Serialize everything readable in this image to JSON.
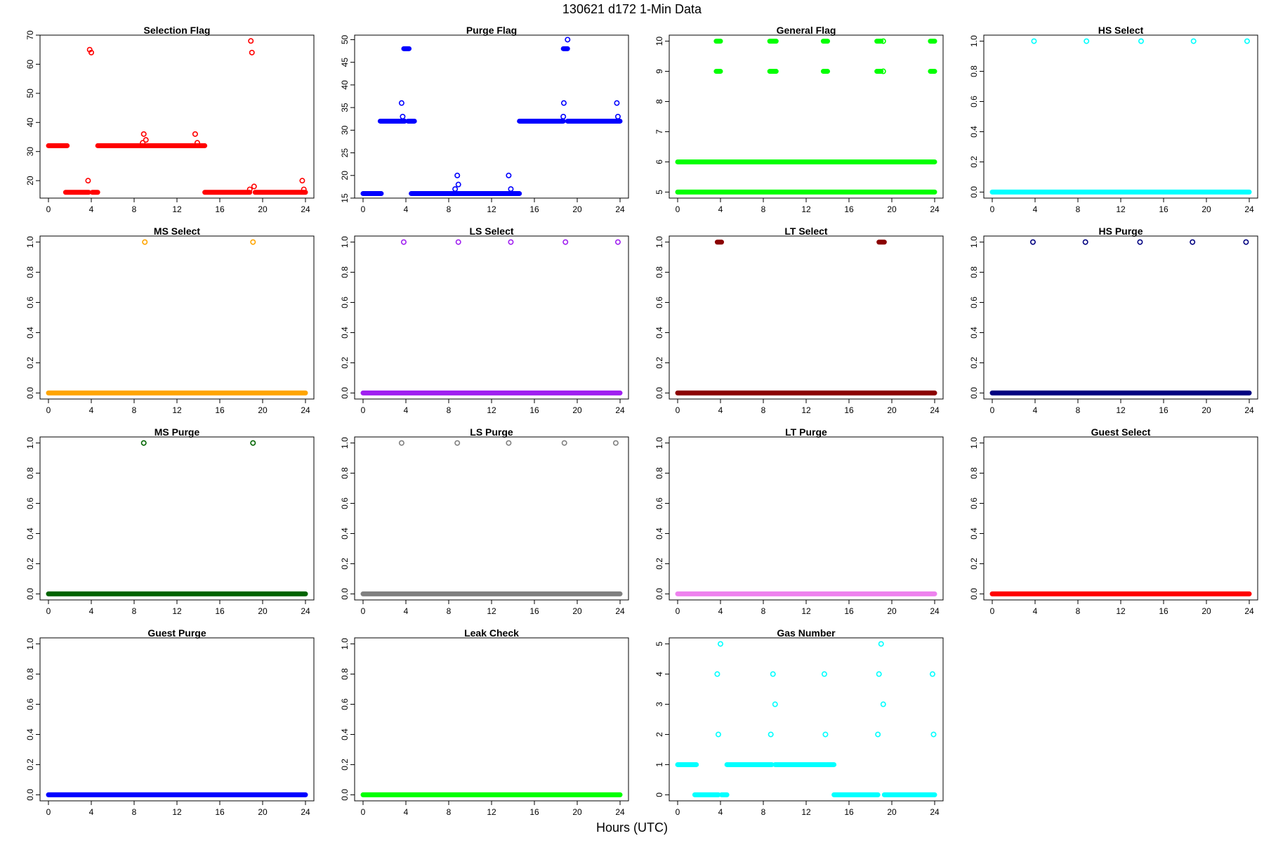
{
  "figure": {
    "title": "130621    d172    1-Min Data",
    "xlabel": "Hours (UTC)"
  },
  "chart_data": [
    {
      "type": "scatter",
      "title": "Selection Flag",
      "color": "#ff0000",
      "xlim": [
        0,
        24
      ],
      "ylim": [
        14,
        70
      ],
      "xticks": [
        0,
        4,
        8,
        12,
        16,
        20,
        24
      ],
      "yticks": [
        20,
        30,
        40,
        50,
        60,
        70
      ],
      "runs": [
        [
          0,
          1.75,
          32
        ],
        [
          1.6,
          3.75,
          16
        ],
        [
          4.1,
          4.6,
          16
        ],
        [
          4.6,
          14.6,
          32
        ],
        [
          14.6,
          18.8,
          16
        ],
        [
          19.3,
          24,
          16
        ]
      ],
      "points": [
        [
          3.7,
          20
        ],
        [
          3.85,
          65
        ],
        [
          4.0,
          64
        ],
        [
          8.8,
          33
        ],
        [
          8.9,
          36
        ],
        [
          9.1,
          34
        ],
        [
          13.7,
          36
        ],
        [
          13.9,
          33
        ],
        [
          18.8,
          17
        ],
        [
          18.9,
          68
        ],
        [
          19.0,
          64
        ],
        [
          19.2,
          18
        ],
        [
          23.7,
          20
        ],
        [
          23.85,
          17
        ]
      ]
    },
    {
      "type": "scatter",
      "title": "Purge Flag",
      "color": "#0000ff",
      "xlim": [
        0,
        24
      ],
      "ylim": [
        15,
        51
      ],
      "xticks": [
        0,
        4,
        8,
        12,
        16,
        20,
        24
      ],
      "yticks": [
        15,
        20,
        25,
        30,
        35,
        40,
        45,
        50
      ],
      "runs": [
        [
          0,
          1.7,
          16
        ],
        [
          1.6,
          3.9,
          32
        ],
        [
          3.8,
          4.3,
          48
        ],
        [
          4.2,
          4.8,
          32
        ],
        [
          4.5,
          14.6,
          16
        ],
        [
          14.6,
          18.7,
          32
        ],
        [
          18.7,
          19.1,
          48
        ],
        [
          19.1,
          24,
          32
        ]
      ],
      "points": [
        [
          3.6,
          36
        ],
        [
          3.7,
          33
        ],
        [
          8.6,
          17
        ],
        [
          8.8,
          20
        ],
        [
          8.9,
          18
        ],
        [
          13.6,
          20
        ],
        [
          13.8,
          17
        ],
        [
          18.7,
          33
        ],
        [
          18.75,
          36
        ],
        [
          19.1,
          50
        ],
        [
          23.7,
          36
        ],
        [
          23.8,
          33
        ]
      ]
    },
    {
      "type": "scatter",
      "title": "General Flag",
      "color": "#00ff00",
      "xlim": [
        0,
        24
      ],
      "ylim": [
        4.8,
        10.2
      ],
      "xticks": [
        0,
        4,
        8,
        12,
        16,
        20,
        24
      ],
      "yticks": [
        5,
        6,
        7,
        8,
        9,
        10
      ],
      "runs": [
        [
          0,
          24,
          5
        ],
        [
          0,
          24,
          6
        ],
        [
          3.6,
          4.0,
          9
        ],
        [
          3.6,
          4.0,
          10
        ],
        [
          8.6,
          9.2,
          9
        ],
        [
          8.6,
          9.2,
          10
        ],
        [
          13.6,
          14.0,
          9
        ],
        [
          13.6,
          14.0,
          10
        ],
        [
          18.6,
          19.0,
          9
        ],
        [
          18.6,
          19.0,
          10
        ],
        [
          23.6,
          24,
          9
        ],
        [
          23.6,
          24,
          10
        ]
      ],
      "points": [
        [
          19.2,
          9
        ],
        [
          19.2,
          10
        ]
      ]
    },
    {
      "type": "scatter",
      "title": "HS Select",
      "color": "#00ffff",
      "xlim": [
        0,
        24
      ],
      "ylim": [
        -0.04,
        1.04
      ],
      "xticks": [
        0,
        4,
        8,
        12,
        16,
        20,
        24
      ],
      "yticks": [
        0.0,
        0.2,
        0.4,
        0.6,
        0.8,
        1.0
      ],
      "runs": [
        [
          0,
          24,
          0
        ]
      ],
      "points": [
        [
          3.9,
          1
        ],
        [
          8.8,
          1
        ],
        [
          13.9,
          1
        ],
        [
          18.8,
          1
        ],
        [
          23.8,
          1
        ]
      ]
    },
    {
      "type": "scatter",
      "title": "MS Select",
      "color": "#ffa500",
      "xlim": [
        0,
        24
      ],
      "ylim": [
        -0.04,
        1.04
      ],
      "xticks": [
        0,
        4,
        8,
        12,
        16,
        20,
        24
      ],
      "yticks": [
        0.0,
        0.2,
        0.4,
        0.6,
        0.8,
        1.0
      ],
      "runs": [
        [
          0,
          24,
          0
        ]
      ],
      "points": [
        [
          9.0,
          1
        ],
        [
          19.1,
          1
        ]
      ]
    },
    {
      "type": "scatter",
      "title": "LS Select",
      "color": "#a020f0",
      "xlim": [
        0,
        24
      ],
      "ylim": [
        -0.04,
        1.04
      ],
      "xticks": [
        0,
        4,
        8,
        12,
        16,
        20,
        24
      ],
      "yticks": [
        0.0,
        0.2,
        0.4,
        0.6,
        0.8,
        1.0
      ],
      "runs": [
        [
          0,
          24,
          0
        ]
      ],
      "points": [
        [
          3.8,
          1
        ],
        [
          8.9,
          1
        ],
        [
          13.8,
          1
        ],
        [
          18.9,
          1
        ],
        [
          23.8,
          1
        ]
      ]
    },
    {
      "type": "scatter",
      "title": "LT Select",
      "color": "#8b0000",
      "xlim": [
        0,
        24
      ],
      "ylim": [
        -0.04,
        1.04
      ],
      "xticks": [
        0,
        4,
        8,
        12,
        16,
        20,
        24
      ],
      "yticks": [
        0.0,
        0.2,
        0.4,
        0.6,
        0.8,
        1.0
      ],
      "runs": [
        [
          0,
          24,
          0
        ],
        [
          3.7,
          4.1,
          1
        ],
        [
          18.8,
          19.3,
          1
        ]
      ],
      "points": []
    },
    {
      "type": "scatter",
      "title": "HS Purge",
      "color": "#000080",
      "xlim": [
        0,
        24
      ],
      "ylim": [
        -0.04,
        1.04
      ],
      "xticks": [
        0,
        4,
        8,
        12,
        16,
        20,
        24
      ],
      "yticks": [
        0.0,
        0.2,
        0.4,
        0.6,
        0.8,
        1.0
      ],
      "runs": [
        [
          0,
          24,
          0
        ]
      ],
      "points": [
        [
          3.8,
          1
        ],
        [
          8.7,
          1
        ],
        [
          13.8,
          1
        ],
        [
          18.7,
          1
        ],
        [
          23.7,
          1
        ]
      ]
    },
    {
      "type": "scatter",
      "title": "MS Purge",
      "color": "#006400",
      "xlim": [
        0,
        24
      ],
      "ylim": [
        -0.04,
        1.04
      ],
      "xticks": [
        0,
        4,
        8,
        12,
        16,
        20,
        24
      ],
      "yticks": [
        0.0,
        0.2,
        0.4,
        0.6,
        0.8,
        1.0
      ],
      "runs": [
        [
          0,
          24,
          0
        ]
      ],
      "points": [
        [
          8.9,
          1
        ],
        [
          19.1,
          1
        ]
      ]
    },
    {
      "type": "scatter",
      "title": "LS Purge",
      "color": "#808080",
      "xlim": [
        0,
        24
      ],
      "ylim": [
        -0.04,
        1.04
      ],
      "xticks": [
        0,
        4,
        8,
        12,
        16,
        20,
        24
      ],
      "yticks": [
        0.0,
        0.2,
        0.4,
        0.6,
        0.8,
        1.0
      ],
      "runs": [
        [
          0,
          24,
          0
        ]
      ],
      "points": [
        [
          3.6,
          1
        ],
        [
          8.8,
          1
        ],
        [
          13.6,
          1
        ],
        [
          18.8,
          1
        ],
        [
          23.6,
          1
        ]
      ]
    },
    {
      "type": "scatter",
      "title": "LT Purge",
      "color": "#ee82ee",
      "xlim": [
        0,
        24
      ],
      "ylim": [
        -0.04,
        1.04
      ],
      "xticks": [
        0,
        4,
        8,
        12,
        16,
        20,
        24
      ],
      "yticks": [
        0.0,
        0.2,
        0.4,
        0.6,
        0.8,
        1.0
      ],
      "runs": [
        [
          0,
          24,
          0
        ]
      ],
      "points": []
    },
    {
      "type": "scatter",
      "title": "Guest Select",
      "color": "#ff0000",
      "xlim": [
        0,
        24
      ],
      "ylim": [
        -0.04,
        1.04
      ],
      "xticks": [
        0,
        4,
        8,
        12,
        16,
        20,
        24
      ],
      "yticks": [
        0.0,
        0.2,
        0.4,
        0.6,
        0.8,
        1.0
      ],
      "runs": [
        [
          0,
          24,
          0
        ]
      ],
      "points": []
    },
    {
      "type": "scatter",
      "title": "Guest Purge",
      "color": "#0000ff",
      "xlim": [
        0,
        24
      ],
      "ylim": [
        -0.04,
        1.04
      ],
      "xticks": [
        0,
        4,
        8,
        12,
        16,
        20,
        24
      ],
      "yticks": [
        0.0,
        0.2,
        0.4,
        0.6,
        0.8,
        1.0
      ],
      "runs": [
        [
          0,
          24,
          0
        ]
      ],
      "points": []
    },
    {
      "type": "scatter",
      "title": "Leak Check",
      "color": "#00ff00",
      "xlim": [
        0,
        24
      ],
      "ylim": [
        -0.04,
        1.04
      ],
      "xticks": [
        0,
        4,
        8,
        12,
        16,
        20,
        24
      ],
      "yticks": [
        0.0,
        0.2,
        0.4,
        0.6,
        0.8,
        1.0
      ],
      "runs": [
        [
          0,
          24,
          0
        ]
      ],
      "points": []
    },
    {
      "type": "scatter",
      "title": "Gas Number",
      "color": "#00ffff",
      "xlim": [
        0,
        24
      ],
      "ylim": [
        -0.2,
        5.2
      ],
      "xticks": [
        0,
        4,
        8,
        12,
        16,
        20,
        24
      ],
      "yticks": [
        0,
        1,
        2,
        3,
        4,
        5
      ],
      "runs": [
        [
          0,
          1.75,
          1
        ],
        [
          1.6,
          3.8,
          0
        ],
        [
          4.1,
          4.6,
          0
        ],
        [
          4.6,
          8.8,
          1
        ],
        [
          9.1,
          13.8,
          1
        ],
        [
          13.9,
          14.6,
          1
        ],
        [
          14.6,
          18.7,
          0
        ],
        [
          19.3,
          24,
          0
        ]
      ],
      "points": [
        [
          3.7,
          4
        ],
        [
          3.8,
          2
        ],
        [
          4.0,
          5
        ],
        [
          8.7,
          2
        ],
        [
          8.9,
          4
        ],
        [
          9.1,
          3
        ],
        [
          13.7,
          4
        ],
        [
          13.8,
          2
        ],
        [
          18.7,
          2
        ],
        [
          18.8,
          4
        ],
        [
          19.0,
          5
        ],
        [
          19.2,
          3
        ],
        [
          23.8,
          4
        ],
        [
          23.9,
          2
        ]
      ]
    }
  ]
}
